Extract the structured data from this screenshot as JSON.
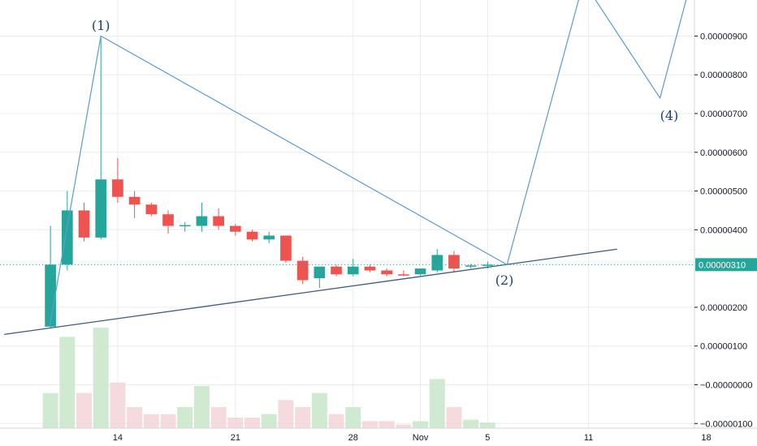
{
  "chart_data": {
    "type": "candlestick",
    "x_range": [
      0,
      41.3
    ],
    "y_range": [
      -1.12e-06,
      9.93e-06
    ],
    "y_ticks": [
      {
        "value": 9e-06,
        "label": "0.00000900"
      },
      {
        "value": 8e-06,
        "label": "0.00000800"
      },
      {
        "value": 7e-06,
        "label": "0.00000700"
      },
      {
        "value": 6e-06,
        "label": "0.00000600"
      },
      {
        "value": 5e-06,
        "label": "0.00000500"
      },
      {
        "value": 4e-06,
        "label": "0.00000400"
      },
      {
        "value": 2e-06,
        "label": "0.00000200"
      },
      {
        "value": 1e-06,
        "label": "0.00000100"
      },
      {
        "value": 0.0,
        "label": "−0.00000000"
      },
      {
        "value": -1e-06,
        "label": "−0.00000100"
      }
    ],
    "x_ticks": [
      {
        "x": 7,
        "label": "14"
      },
      {
        "x": 14,
        "label": "21"
      },
      {
        "x": 21,
        "label": "28"
      },
      {
        "x": 25,
        "label": "Nov"
      },
      {
        "x": 29,
        "label": "5"
      },
      {
        "x": 35,
        "label": "11"
      },
      {
        "x": 42,
        "label": "18"
      }
    ],
    "candles": [
      {
        "x": 3,
        "open": 1.5e-06,
        "high": 4.1e-06,
        "low": 1.45e-06,
        "close": 3.1e-06,
        "volume": 5e-07
      },
      {
        "x": 4,
        "open": 3.1e-06,
        "high": 5e-06,
        "low": 2.95e-06,
        "close": 4.5e-06,
        "volume": 1.3e-06
      },
      {
        "x": 5,
        "open": 4.5e-06,
        "high": 4.7e-06,
        "low": 3.7e-06,
        "close": 3.8e-06,
        "volume": 5e-07
      },
      {
        "x": 6,
        "open": 3.8e-06,
        "high": 9e-06,
        "low": 3.75e-06,
        "close": 5.3e-06,
        "volume": 1.43e-06
      },
      {
        "x": 7,
        "open": 5.3e-06,
        "high": 5.85e-06,
        "low": 4.7e-06,
        "close": 4.85e-06,
        "volume": 6.5e-07
      },
      {
        "x": 8,
        "open": 4.85e-06,
        "high": 5e-06,
        "low": 4.3e-06,
        "close": 4.65e-06,
        "volume": 3e-07
      },
      {
        "x": 9,
        "open": 4.65e-06,
        "high": 4.7e-06,
        "low": 4.35e-06,
        "close": 4.4e-06,
        "volume": 2e-07
      },
      {
        "x": 10,
        "open": 4.4e-06,
        "high": 4.5e-06,
        "low": 3.9e-06,
        "close": 4.1e-06,
        "volume": 2e-07
      },
      {
        "x": 11,
        "open": 4.1e-06,
        "high": 4.2e-06,
        "low": 3.95e-06,
        "close": 4.12e-06,
        "volume": 3e-07
      },
      {
        "x": 12,
        "open": 4.1e-06,
        "high": 4.7e-06,
        "low": 3.95e-06,
        "close": 4.35e-06,
        "volume": 6e-07
      },
      {
        "x": 13,
        "open": 4.35e-06,
        "high": 4.55e-06,
        "low": 4e-06,
        "close": 4.1e-06,
        "volume": 3e-07
      },
      {
        "x": 14,
        "open": 4.1e-06,
        "high": 4.15e-06,
        "low": 3.85e-06,
        "close": 3.95e-06,
        "volume": 1.5e-07
      },
      {
        "x": 15,
        "open": 3.95e-06,
        "high": 4e-06,
        "low": 3.7e-06,
        "close": 3.75e-06,
        "volume": 1.5e-07
      },
      {
        "x": 16,
        "open": 3.75e-06,
        "high": 3.95e-06,
        "low": 3.65e-06,
        "close": 3.85e-06,
        "volume": 2e-07
      },
      {
        "x": 17,
        "open": 3.85e-06,
        "high": 3.85e-06,
        "low": 3.15e-06,
        "close": 3.2e-06,
        "volume": 4e-07
      },
      {
        "x": 18,
        "open": 3.2e-06,
        "high": 3.3e-06,
        "low": 2.6e-06,
        "close": 2.7e-06,
        "volume": 3e-07
      },
      {
        "x": 19,
        "open": 2.75e-06,
        "high": 3.05e-06,
        "low": 2.5e-06,
        "close": 3.05e-06,
        "volume": 5e-07
      },
      {
        "x": 20,
        "open": 3.05e-06,
        "high": 3.1e-06,
        "low": 2.8e-06,
        "close": 2.85e-06,
        "volume": 2e-07
      },
      {
        "x": 21,
        "open": 2.85e-06,
        "high": 3.25e-06,
        "low": 2.8e-06,
        "close": 3.05e-06,
        "volume": 3e-07
      },
      {
        "x": 22,
        "open": 3.05e-06,
        "high": 3.1e-06,
        "low": 2.9e-06,
        "close": 2.95e-06,
        "volume": 1e-07
      },
      {
        "x": 23,
        "open": 2.95e-06,
        "high": 3e-06,
        "low": 2.8e-06,
        "close": 2.85e-06,
        "volume": 1e-07
      },
      {
        "x": 24,
        "open": 2.85e-06,
        "high": 2.95e-06,
        "low": 2.8e-06,
        "close": 2.83e-06,
        "volume": 5e-08
      },
      {
        "x": 25,
        "open": 2.85e-06,
        "high": 3e-06,
        "low": 2.82e-06,
        "close": 3e-06,
        "volume": 1e-07
      },
      {
        "x": 26,
        "open": 2.95e-06,
        "high": 3.5e-06,
        "low": 2.9e-06,
        "close": 3.35e-06,
        "volume": 7e-07
      },
      {
        "x": 27,
        "open": 3.35e-06,
        "high": 3.45e-06,
        "low": 2.9e-06,
        "close": 3e-06,
        "volume": 3e-07
      },
      {
        "x": 28,
        "open": 3.05e-06,
        "high": 3.12e-06,
        "low": 3e-06,
        "close": 3.08e-06,
        "volume": 1.2e-07
      },
      {
        "x": 29,
        "open": 3.08e-06,
        "high": 3.18e-06,
        "low": 3e-06,
        "close": 3.1e-06,
        "volume": 8e-08
      }
    ],
    "current_price": 3.1e-06,
    "current_price_label": "0.00000310",
    "wave_labels": [
      {
        "text": "(1)",
        "x": 6.0,
        "y": 9.25e-06
      },
      {
        "text": "(2)",
        "x": 30.0,
        "y": 2.68e-06
      },
      {
        "text": "(4)",
        "x": 39.8,
        "y": 6.93e-06
      }
    ],
    "wave_path": [
      {
        "x": 2.95,
        "y": 1.5e-06
      },
      {
        "x": 6.0,
        "y": 9e-06
      },
      {
        "x": 30.15,
        "y": 3.1e-06
      },
      {
        "x": 34.7,
        "y": 1.04e-05
      },
      {
        "x": 39.25,
        "y": 7.4e-06
      },
      {
        "x": 41.15,
        "y": 1.05e-05
      }
    ],
    "trendline": [
      {
        "x": 0.25,
        "y": 1.3e-06
      },
      {
        "x": 36.7,
        "y": 3.5e-06
      }
    ],
    "colors": {
      "up": "#26a69a",
      "down": "#ef5350",
      "volume_up": "#c8e6c9",
      "volume_down": "#f3d5d8",
      "wave": "#5b9bd5",
      "trend": "#3e5a7a",
      "price_line": "#26a69a",
      "grid": "#e9ecef",
      "wave_label": "#1e3f6d"
    }
  }
}
